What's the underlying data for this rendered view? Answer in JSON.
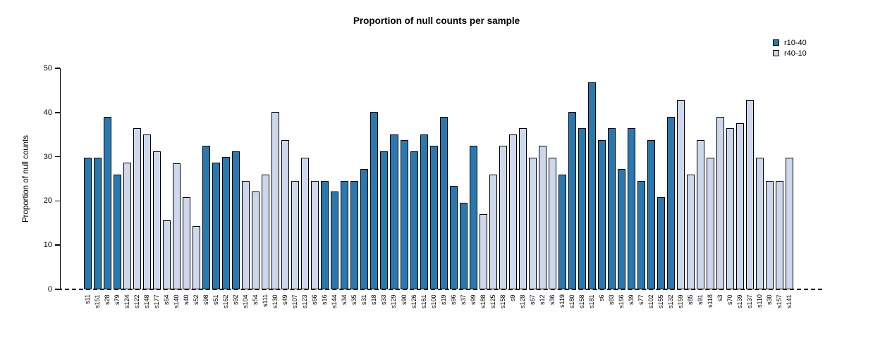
{
  "chart_data": {
    "type": "bar",
    "title": "Proportion of null counts per sample",
    "ylabel": "Proportion of null counts",
    "ylim": [
      0,
      50
    ],
    "yticks": [
      0,
      10,
      20,
      30,
      40,
      50
    ],
    "grid": false,
    "legend_position": "top-right",
    "zero_line_style": "dashed",
    "series": [
      {
        "name": "r10-40",
        "color": "#2a78b0"
      },
      {
        "name": "r40-10",
        "color": "#cdd8ec"
      }
    ],
    "bars": [
      {
        "label": "s11",
        "value": 29.8,
        "series": 0
      },
      {
        "label": "s151",
        "value": 29.8,
        "series": 0
      },
      {
        "label": "s28",
        "value": 39.0,
        "series": 0
      },
      {
        "label": "s79",
        "value": 26.0,
        "series": 0
      },
      {
        "label": "s124",
        "value": 28.6,
        "series": 1
      },
      {
        "label": "s122",
        "value": 36.4,
        "series": 1
      },
      {
        "label": "s148",
        "value": 35.0,
        "series": 1
      },
      {
        "label": "s177",
        "value": 31.2,
        "series": 1
      },
      {
        "label": "s64",
        "value": 15.6,
        "series": 1
      },
      {
        "label": "s140",
        "value": 28.5,
        "series": 1
      },
      {
        "label": "s40",
        "value": 20.8,
        "series": 1
      },
      {
        "label": "s52",
        "value": 14.3,
        "series": 1
      },
      {
        "label": "s98",
        "value": 32.5,
        "series": 0
      },
      {
        "label": "s51",
        "value": 28.6,
        "series": 0
      },
      {
        "label": "s162",
        "value": 30.0,
        "series": 0
      },
      {
        "label": "s92",
        "value": 31.2,
        "series": 0
      },
      {
        "label": "s104",
        "value": 24.5,
        "series": 1
      },
      {
        "label": "s54",
        "value": 22.1,
        "series": 1
      },
      {
        "label": "s111",
        "value": 26.0,
        "series": 1
      },
      {
        "label": "s130",
        "value": 40.2,
        "series": 1
      },
      {
        "label": "s49",
        "value": 33.8,
        "series": 1
      },
      {
        "label": "s107",
        "value": 24.5,
        "series": 1
      },
      {
        "label": "s123",
        "value": 29.8,
        "series": 1
      },
      {
        "label": "s66",
        "value": 24.5,
        "series": 1
      },
      {
        "label": "s16",
        "value": 24.5,
        "series": 0
      },
      {
        "label": "s144",
        "value": 22.1,
        "series": 0
      },
      {
        "label": "s34",
        "value": 24.5,
        "series": 0
      },
      {
        "label": "s35",
        "value": 24.5,
        "series": 0
      },
      {
        "label": "s31",
        "value": 27.3,
        "series": 0
      },
      {
        "label": "s18",
        "value": 40.2,
        "series": 0
      },
      {
        "label": "s33",
        "value": 31.2,
        "series": 0
      },
      {
        "label": "s129",
        "value": 35.0,
        "series": 0
      },
      {
        "label": "s90",
        "value": 33.7,
        "series": 0
      },
      {
        "label": "s126",
        "value": 31.2,
        "series": 0
      },
      {
        "label": "s161",
        "value": 35.0,
        "series": 0
      },
      {
        "label": "s100",
        "value": 32.5,
        "series": 0
      },
      {
        "label": "s19",
        "value": 39.0,
        "series": 0
      },
      {
        "label": "s96",
        "value": 23.4,
        "series": 0
      },
      {
        "label": "s37",
        "value": 19.6,
        "series": 0
      },
      {
        "label": "s99",
        "value": 32.5,
        "series": 0
      },
      {
        "label": "s188",
        "value": 17.0,
        "series": 1
      },
      {
        "label": "s125",
        "value": 26.0,
        "series": 1
      },
      {
        "label": "s158",
        "value": 32.5,
        "series": 1
      },
      {
        "label": "s9",
        "value": 35.0,
        "series": 1
      },
      {
        "label": "s128",
        "value": 36.4,
        "series": 1
      },
      {
        "label": "s67",
        "value": 29.8,
        "series": 1
      },
      {
        "label": "s12",
        "value": 32.5,
        "series": 1
      },
      {
        "label": "s36",
        "value": 29.8,
        "series": 1
      },
      {
        "label": "s119",
        "value": 26.0,
        "series": 0
      },
      {
        "label": "s180",
        "value": 40.2,
        "series": 0
      },
      {
        "label": "s158",
        "value": 36.4,
        "series": 0
      },
      {
        "label": "s181",
        "value": 46.8,
        "series": 0
      },
      {
        "label": "s6",
        "value": 33.7,
        "series": 0
      },
      {
        "label": "s83",
        "value": 36.4,
        "series": 0
      },
      {
        "label": "s166",
        "value": 27.3,
        "series": 0
      },
      {
        "label": "s39",
        "value": 36.4,
        "series": 0
      },
      {
        "label": "s77",
        "value": 24.5,
        "series": 0
      },
      {
        "label": "s102",
        "value": 33.7,
        "series": 0
      },
      {
        "label": "s155",
        "value": 20.8,
        "series": 0
      },
      {
        "label": "s132",
        "value": 39.0,
        "series": 0
      },
      {
        "label": "s159",
        "value": 42.8,
        "series": 1
      },
      {
        "label": "s85",
        "value": 26.0,
        "series": 1
      },
      {
        "label": "s91",
        "value": 33.8,
        "series": 1
      },
      {
        "label": "s118",
        "value": 29.8,
        "series": 1
      },
      {
        "label": "s3",
        "value": 39.0,
        "series": 1
      },
      {
        "label": "s70",
        "value": 36.4,
        "series": 1
      },
      {
        "label": "s139",
        "value": 37.6,
        "series": 1
      },
      {
        "label": "s137",
        "value": 42.8,
        "series": 1
      },
      {
        "label": "s110",
        "value": 29.8,
        "series": 1
      },
      {
        "label": "s30",
        "value": 24.5,
        "series": 1
      },
      {
        "label": "s157",
        "value": 24.5,
        "series": 1
      },
      {
        "label": "s141",
        "value": 29.8,
        "series": 1
      }
    ]
  }
}
